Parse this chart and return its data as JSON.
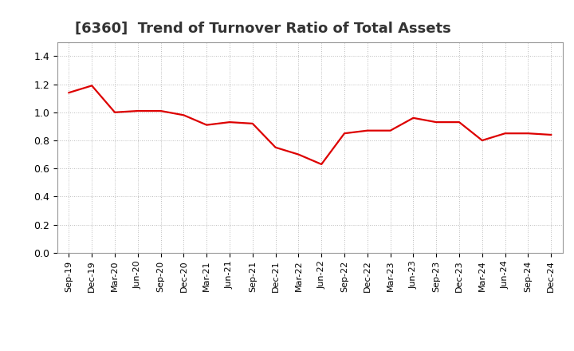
{
  "title": "[6360]  Trend of Turnover Ratio of Total Assets",
  "labels": [
    "Sep-19",
    "Dec-19",
    "Mar-20",
    "Jun-20",
    "Sep-20",
    "Dec-20",
    "Mar-21",
    "Jun-21",
    "Sep-21",
    "Dec-21",
    "Mar-22",
    "Jun-22",
    "Sep-22",
    "Dec-22",
    "Mar-23",
    "Jun-23",
    "Sep-23",
    "Dec-23",
    "Mar-24",
    "Jun-24",
    "Sep-24",
    "Dec-24"
  ],
  "values": [
    1.14,
    1.19,
    1.0,
    1.01,
    1.01,
    0.98,
    0.91,
    0.93,
    0.92,
    0.75,
    0.7,
    0.63,
    0.85,
    0.87,
    0.87,
    0.96,
    0.93,
    0.93,
    0.8,
    0.85,
    0.85,
    0.84
  ],
  "line_color": "#dd0000",
  "line_width": 1.6,
  "background_color": "#ffffff",
  "plot_bg_color": "#ffffff",
  "grid_color": "#bbbbbb",
  "title_fontsize": 13,
  "tick_fontsize": 8,
  "ytick_fontsize": 9,
  "ylim": [
    0.0,
    1.5
  ],
  "yticks": [
    0.0,
    0.2,
    0.4,
    0.6,
    0.8,
    1.0,
    1.2,
    1.4
  ]
}
